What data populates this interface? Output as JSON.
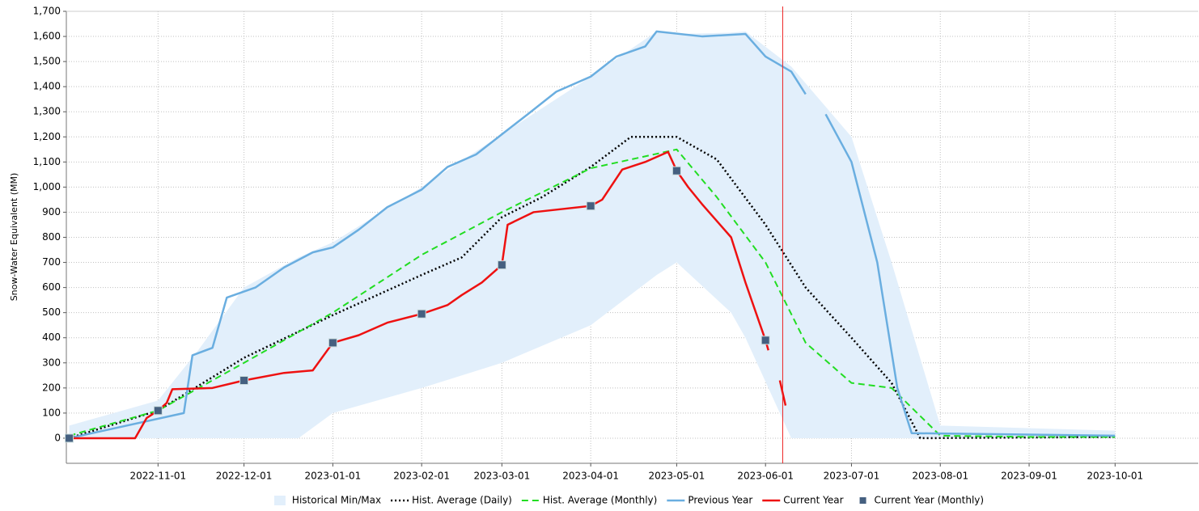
{
  "chart_data": {
    "type": "line",
    "y_label": "Snow-Water Equivalent (MM)",
    "xlim": [
      "2022-09-30",
      "2023-10-30"
    ],
    "xticks": [
      "2022-11-01",
      "2022-12-01",
      "2023-01-01",
      "2023-02-01",
      "2023-03-01",
      "2023-04-01",
      "2023-05-01",
      "2023-06-01",
      "2023-07-01",
      "2023-08-01",
      "2023-09-01",
      "2023-10-01"
    ],
    "ylim": [
      -100,
      1700
    ],
    "yticks": [
      0,
      100,
      200,
      300,
      400,
      500,
      600,
      700,
      800,
      900,
      {
        "value": 1000,
        "label": "1,000"
      },
      {
        "value": 1100,
        "label": "1,100"
      },
      {
        "value": 1200,
        "label": "1,200"
      },
      {
        "value": 1300,
        "label": "1,300"
      },
      {
        "value": 1400,
        "label": "1,400"
      },
      {
        "value": 1500,
        "label": "1,500"
      },
      {
        "value": 1600,
        "label": "1,600"
      },
      {
        "value": 1700,
        "label": "1,700"
      }
    ],
    "grid": true,
    "legend": "bottom",
    "current_date_line": {
      "x": "2023-06-07",
      "color": "#ee2222"
    },
    "band": {
      "name": "Historical Min/Max",
      "color": "#e2effb",
      "x": [
        "2022-10-01",
        "2022-11-01",
        "2022-11-15",
        "2022-12-01",
        "2022-12-20",
        "2023-01-01",
        "2023-02-01",
        "2023-03-01",
        "2023-04-01",
        "2023-04-24",
        "2023-05-01",
        "2023-05-20",
        "2023-05-25",
        "2023-06-10",
        "2023-07-01",
        "2023-07-15",
        "2023-08-01",
        "2023-10-01"
      ],
      "max": [
        50,
        150,
        350,
        600,
        720,
        780,
        1000,
        1210,
        1440,
        1620,
        1610,
        1615,
        1620,
        1480,
        1200,
        700,
        50,
        30
      ],
      "min": [
        0,
        0,
        0,
        0,
        0,
        100,
        200,
        300,
        450,
        650,
        700,
        500,
        400,
        0,
        0,
        0,
        0,
        0
      ]
    },
    "series": [
      {
        "name": "Hist. Average (Daily)",
        "color": "#000000",
        "style": "dotted",
        "x": [
          "2022-10-01",
          "2022-11-01",
          "2022-12-01",
          "2023-01-01",
          "2023-02-01",
          "2023-02-15",
          "2023-03-01",
          "2023-03-15",
          "2023-04-01",
          "2023-04-15",
          "2023-05-01",
          "2023-05-15",
          "2023-06-01",
          "2023-06-15",
          "2023-07-01",
          "2023-07-15",
          "2023-07-25",
          "2023-10-01"
        ],
        "values": [
          0,
          110,
          320,
          490,
          650,
          720,
          880,
          960,
          1080,
          1200,
          1200,
          1110,
          850,
          600,
          400,
          220,
          0,
          5
        ]
      },
      {
        "name": "Hist. Average (Monthly)",
        "color": "#22dd22",
        "style": "dashed",
        "x": [
          "2022-10-01",
          "2022-11-01",
          "2022-12-01",
          "2023-01-01",
          "2023-02-01",
          "2023-03-01",
          "2023-04-01",
          "2023-05-01",
          "2023-05-15",
          "2023-06-01",
          "2023-06-15",
          "2023-07-01",
          "2023-07-15",
          "2023-08-01",
          "2023-09-01",
          "2023-10-01"
        ],
        "values": [
          10,
          110,
          300,
          500,
          730,
          900,
          1075,
          1150,
          960,
          700,
          380,
          220,
          200,
          10,
          5,
          5
        ]
      },
      {
        "name": "Previous Year",
        "color": "#6aaee0",
        "style": "solid",
        "x": [
          "2022-10-01",
          "2022-11-10",
          "2022-11-13",
          "2022-11-20",
          "2022-11-25",
          "2022-12-05",
          "2022-12-15",
          "2022-12-25",
          "2023-01-01",
          "2023-01-10",
          "2023-01-20",
          "2023-02-01",
          "2023-02-10",
          "2023-02-20",
          "2023-03-01",
          "2023-03-10",
          "2023-03-20",
          "2023-04-01",
          "2023-04-10",
          "2023-04-20",
          "2023-04-24",
          "2023-05-10",
          "2023-05-25",
          "2023-06-01",
          "2023-06-10",
          "2023-06-15",
          "2023-06-18",
          "2023-06-22",
          "2023-07-01",
          "2023-07-10",
          "2023-07-17",
          "2023-07-22",
          "2023-10-01"
        ],
        "values": [
          0,
          100,
          330,
          360,
          560,
          600,
          680,
          740,
          760,
          830,
          920,
          990,
          1080,
          1130,
          1210,
          1290,
          1380,
          1440,
          1520,
          1560,
          1620,
          1600,
          1610,
          1520,
          1460,
          1370,
          null,
          1290,
          1100,
          700,
          200,
          20,
          10
        ]
      },
      {
        "name": "Current Year",
        "color": "#ee1111",
        "style": "solid",
        "x": [
          "2022-10-01",
          "2022-10-24",
          "2022-10-28",
          "2022-11-01",
          "2022-11-04",
          "2022-11-06",
          "2022-11-20",
          "2022-12-01",
          "2022-12-15",
          "2022-12-25",
          "2023-01-01",
          "2023-01-10",
          "2023-01-20",
          "2023-02-01",
          "2023-02-10",
          "2023-02-15",
          "2023-02-22",
          "2023-03-01",
          "2023-03-03",
          "2023-03-12",
          "2023-04-01",
          "2023-04-05",
          "2023-04-12",
          "2023-04-20",
          "2023-04-28",
          "2023-05-01",
          "2023-05-05",
          "2023-05-10",
          "2023-05-20",
          "2023-05-25",
          "2023-06-01",
          "2023-06-02",
          "2023-06-04",
          "2023-06-06",
          "2023-06-08"
        ],
        "values": [
          0,
          0,
          80,
          110,
          140,
          195,
          200,
          230,
          260,
          270,
          380,
          410,
          460,
          495,
          530,
          570,
          620,
          690,
          850,
          900,
          925,
          950,
          1070,
          1100,
          1140,
          1065,
          1000,
          930,
          800,
          620,
          390,
          350,
          null,
          230,
          130
        ]
      },
      {
        "name": "Current Year (Monthly)",
        "color": "#456080",
        "style": "marker",
        "x": [
          "2022-10-01",
          "2022-11-01",
          "2022-12-01",
          "2023-01-01",
          "2023-02-01",
          "2023-03-01",
          "2023-04-01",
          "2023-05-01",
          "2023-06-01"
        ],
        "values": [
          0,
          110,
          230,
          380,
          495,
          690,
          925,
          1065,
          390
        ]
      }
    ]
  }
}
